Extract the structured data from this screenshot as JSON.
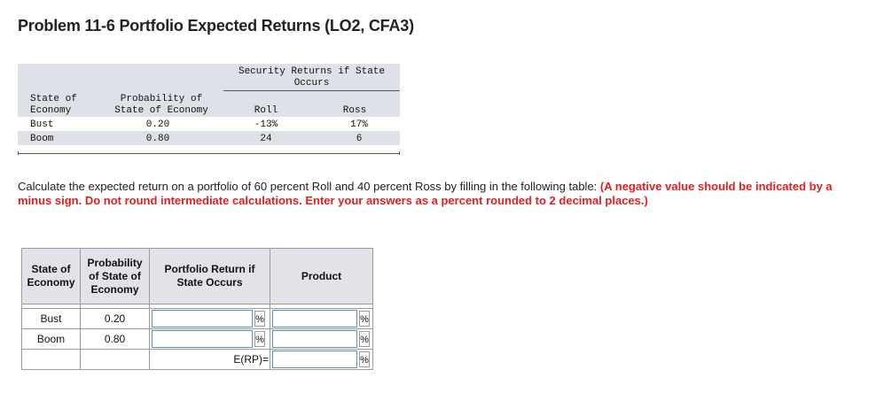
{
  "title": "Problem 11-6 Portfolio Expected Returns (LO2, CFA3)",
  "data_table": {
    "group_header_line1": "Security Returns if State",
    "group_header_line2": "Occurs",
    "col_state_line1": "State of",
    "col_state_line2": "Economy",
    "col_prob_line1": "Probability of",
    "col_prob_line2": "State of Economy",
    "col_roll": "Roll",
    "col_ross": "Ross",
    "rows": [
      {
        "state": "Bust",
        "prob": "0.20",
        "roll": "-13%",
        "ross": "17%"
      },
      {
        "state": "Boom",
        "prob": "0.80",
        "roll": "24",
        "ross": "6"
      }
    ]
  },
  "instructions": {
    "text": "Calculate the expected return on a portfolio of 60 percent Roll and 40 percent Ross by filling in the following table: ",
    "emphasis": "(A negative value should be indicated by a minus sign. Do not round intermediate calculations. Enter your answers as a percent rounded to 2 decimal places.)"
  },
  "answer_table": {
    "h_state_line1": "State of",
    "h_state_line2": "Economy",
    "h_prob_line1": "Probability",
    "h_prob_line2": "of State of",
    "h_prob_line3": "Economy",
    "h_return_line1": "Portfolio Return if",
    "h_return_line2": "State Occurs",
    "h_product": "Product",
    "rows": [
      {
        "state": "Bust",
        "prob": "0.20",
        "return_value": "",
        "product_value": ""
      },
      {
        "state": "Boom",
        "prob": "0.80",
        "return_value": "",
        "product_value": ""
      }
    ],
    "erp_label": "E(RP)=",
    "erp_value": "",
    "percent_sign": "%"
  }
}
